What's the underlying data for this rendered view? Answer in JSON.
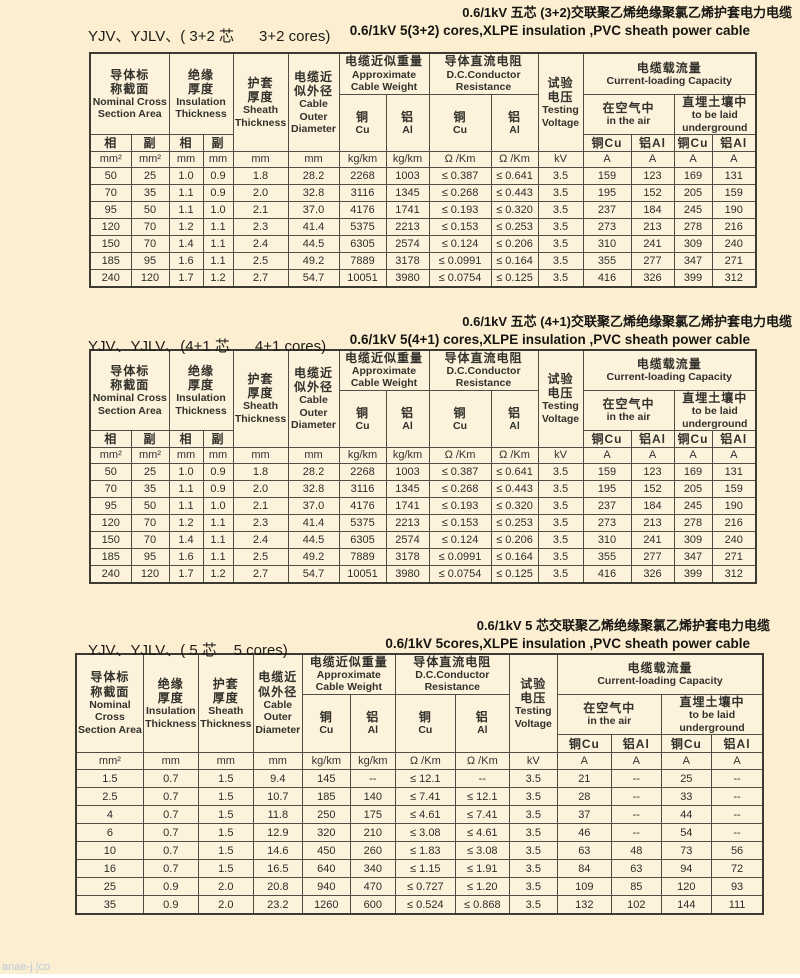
{
  "page": {
    "watermark": "anae-j.|co"
  },
  "colors": {
    "page_bg": "#fcefd1",
    "cell_bg": "#fdf3dc",
    "border": "#514e46",
    "text": "#2e2c27"
  },
  "sections": [
    {
      "model_label": "YJV、YJLV、( 3+2 芯      3+2 cores)",
      "title_cn": "0.6/1kV 五芯 (3+2)交联聚乙烯绝缘聚氯乙烯护套电力电缆",
      "title_en": "0.6/1kV 5(3+2) cores,XLPE insulation ,PVC sheath power cable",
      "header": "split5",
      "rows": [
        [
          "50",
          "25",
          "1.0",
          "0.9",
          "1.8",
          "28.2",
          "2268",
          "1003",
          "≤ 0.387",
          "≤ 0.641",
          "3.5",
          "159",
          "123",
          "169",
          "131"
        ],
        [
          "70",
          "35",
          "1.1",
          "0.9",
          "2.0",
          "32.8",
          "3116",
          "1345",
          "≤ 0.268",
          "≤ 0.443",
          "3.5",
          "195",
          "152",
          "205",
          "159"
        ],
        [
          "95",
          "50",
          "1.1",
          "1.0",
          "2.1",
          "37.0",
          "4176",
          "1741",
          "≤ 0.193",
          "≤ 0.320",
          "3.5",
          "237",
          "184",
          "245",
          "190"
        ],
        [
          "120",
          "70",
          "1.2",
          "1.1",
          "2.3",
          "41.4",
          "5375",
          "2213",
          "≤ 0.153",
          "≤ 0.253",
          "3.5",
          "273",
          "213",
          "278",
          "216"
        ],
        [
          "150",
          "70",
          "1.4",
          "1.1",
          "2.4",
          "44.5",
          "6305",
          "2574",
          "≤ 0.124",
          "≤ 0.206",
          "3.5",
          "310",
          "241",
          "309",
          "240"
        ],
        [
          "185",
          "95",
          "1.6",
          "1.1",
          "2.5",
          "49.2",
          "7889",
          "3178",
          "≤ 0.0991",
          "≤ 0.164",
          "3.5",
          "355",
          "277",
          "347",
          "271"
        ],
        [
          "240",
          "120",
          "1.7",
          "1.2",
          "2.7",
          "54.7",
          "10051",
          "3980",
          "≤ 0.0754",
          "≤ 0.125",
          "3.5",
          "416",
          "326",
          "399",
          "312"
        ]
      ]
    },
    {
      "model_label": "YJV、YJLV、(4+1 芯      4+1 cores)",
      "title_cn": "0.6/1kV 五芯 (4+1)交联聚乙烯绝缘聚氯乙烯护套电力电缆",
      "title_en": "0.6/1kV 5(4+1) cores,XLPE insulation ,PVC sheath power cable",
      "header": "split5",
      "rows": [
        [
          "50",
          "25",
          "1.0",
          "0.9",
          "1.8",
          "28.2",
          "2268",
          "1003",
          "≤ 0.387",
          "≤ 0.641",
          "3.5",
          "159",
          "123",
          "169",
          "131"
        ],
        [
          "70",
          "35",
          "1.1",
          "0.9",
          "2.0",
          "32.8",
          "3116",
          "1345",
          "≤ 0.268",
          "≤ 0.443",
          "3.5",
          "195",
          "152",
          "205",
          "159"
        ],
        [
          "95",
          "50",
          "1.1",
          "1.0",
          "2.1",
          "37.0",
          "4176",
          "1741",
          "≤ 0.193",
          "≤ 0.320",
          "3.5",
          "237",
          "184",
          "245",
          "190"
        ],
        [
          "120",
          "70",
          "1.2",
          "1.1",
          "2.3",
          "41.4",
          "5375",
          "2213",
          "≤ 0.153",
          "≤ 0.253",
          "3.5",
          "273",
          "213",
          "278",
          "216"
        ],
        [
          "150",
          "70",
          "1.4",
          "1.1",
          "2.4",
          "44.5",
          "6305",
          "2574",
          "≤ 0.124",
          "≤ 0.206",
          "3.5",
          "310",
          "241",
          "309",
          "240"
        ],
        [
          "185",
          "95",
          "1.6",
          "1.1",
          "2.5",
          "49.2",
          "7889",
          "3178",
          "≤ 0.0991",
          "≤ 0.164",
          "3.5",
          "355",
          "277",
          "347",
          "271"
        ],
        [
          "240",
          "120",
          "1.7",
          "1.2",
          "2.7",
          "54.7",
          "10051",
          "3980",
          "≤ 0.0754",
          "≤ 0.125",
          "3.5",
          "416",
          "326",
          "399",
          "312"
        ]
      ]
    },
    {
      "model_label": "YJV、YJLV、( 5 芯    5 cores)",
      "title_cn": "0.6/1kV 5 芯交联聚乙烯绝缘聚氯乙烯护套电力电缆",
      "title_en": "0.6/1kV 5cores,XLPE insulation ,PVC sheath power cable",
      "header": "plain5",
      "rows": [
        [
          "1.5",
          "0.7",
          "1.5",
          "9.4",
          "145",
          "--",
          "≤ 12.1",
          "--",
          "3.5",
          "21",
          "--",
          "25",
          "--"
        ],
        [
          "2.5",
          "0.7",
          "1.5",
          "10.7",
          "185",
          "140",
          "≤ 7.41",
          "≤ 12.1",
          "3.5",
          "28",
          "--",
          "33",
          "--"
        ],
        [
          "4",
          "0.7",
          "1.5",
          "11.8",
          "250",
          "175",
          "≤ 4.61",
          "≤ 7.41",
          "3.5",
          "37",
          "--",
          "44",
          "--"
        ],
        [
          "6",
          "0.7",
          "1.5",
          "12.9",
          "320",
          "210",
          "≤ 3.08",
          "≤ 4.61",
          "3.5",
          "46",
          "--",
          "54",
          "--"
        ],
        [
          "10",
          "0.7",
          "1.5",
          "14.6",
          "450",
          "260",
          "≤ 1.83",
          "≤ 3.08",
          "3.5",
          "63",
          "48",
          "73",
          "56"
        ],
        [
          "16",
          "0.7",
          "1.5",
          "16.5",
          "640",
          "340",
          "≤ 1.15",
          "≤ 1.91",
          "3.5",
          "84",
          "63",
          "94",
          "72"
        ],
        [
          "25",
          "0.9",
          "2.0",
          "20.8",
          "940",
          "470",
          "≤ 0.727",
          "≤ 1.20",
          "3.5",
          "109",
          "85",
          "120",
          "93"
        ],
        [
          "35",
          "0.9",
          "2.0",
          "23.2",
          "1260",
          "600",
          "≤ 0.524",
          "≤ 0.868",
          "3.5",
          "132",
          "102",
          "144",
          "111"
        ]
      ]
    }
  ],
  "header_specs": {
    "split5": {
      "widths": [
        41,
        38,
        34,
        30,
        55,
        51,
        47,
        43,
        62,
        47,
        45,
        48,
        43,
        38,
        44
      ],
      "rows": [
        [
          {
            "lines": [
              "导体标",
              "称截面",
              "Nominal Cross",
              "Section Area"
            ],
            "c": 2,
            "r": 2
          },
          {
            "lines": [
              "绝缘",
              "厚度",
              "Insulation",
              "Thickness"
            ],
            "c": 2,
            "r": 2
          },
          {
            "lines": [
              "护套",
              "厚度",
              "Sheath",
              "Thickness"
            ],
            "r": 3
          },
          {
            "lines": [
              "电缆近",
              "似外径",
              "Cable",
              "Outer",
              "Diameter"
            ],
            "r": 3
          },
          {
            "lines": [
              "电缆近似重量",
              "Approximate",
              "Cable Weight"
            ],
            "c": 2
          },
          {
            "lines": [
              "导体直流电阻",
              "D.C.Conductor",
              "Resistance"
            ],
            "c": 2
          },
          {
            "lines": [
              "试验",
              "电压",
              "Testing",
              "Voltage"
            ],
            "r": 3
          },
          {
            "lines": [
              "电缆载流量",
              "Current-loading Capacity"
            ],
            "c": 4
          }
        ],
        [
          {
            "lines": [
              "铜",
              "Cu"
            ],
            "r": 2
          },
          {
            "lines": [
              "铝",
              "Al"
            ],
            "r": 2
          },
          {
            "lines": [
              "铜",
              "Cu"
            ],
            "r": 2
          },
          {
            "lines": [
              "铝",
              "Al"
            ],
            "r": 2
          },
          {
            "lines": [
              "在空气中",
              "in the air"
            ],
            "c": 2
          },
          {
            "lines": [
              "直埋土壤中",
              "to be laid",
              "underground"
            ],
            "c": 2
          }
        ],
        [
          {
            "t": "相"
          },
          {
            "t": "副"
          },
          {
            "t": "相"
          },
          {
            "t": "副"
          },
          {
            "t": "铜Cu"
          },
          {
            "t": "铝Al"
          },
          {
            "t": "铜Cu"
          },
          {
            "t": "铝Al"
          }
        ],
        [
          {
            "t": "mm²"
          },
          {
            "t": "mm²"
          },
          {
            "t": "mm"
          },
          {
            "t": "mm"
          },
          {
            "t": "mm"
          },
          {
            "t": "mm"
          },
          {
            "t": "kg/km"
          },
          {
            "t": "kg/km"
          },
          {
            "t": "Ω /Km"
          },
          {
            "t": "Ω /Km"
          },
          {
            "t": "kV"
          },
          {
            "t": "A"
          },
          {
            "t": "A"
          },
          {
            "t": "A"
          },
          {
            "t": "A"
          }
        ]
      ]
    },
    "plain5": {
      "widths": [
        60,
        55,
        55,
        49,
        48,
        45,
        60,
        54,
        48,
        54,
        50,
        50,
        52
      ],
      "rows": [
        [
          {
            "lines": [
              "导体标",
              "称截面",
              "Nominal",
              "Cross",
              "Section Area"
            ],
            "r": 3
          },
          {
            "lines": [
              "绝缘",
              "厚度",
              "Insulation",
              "Thickness"
            ],
            "r": 3
          },
          {
            "lines": [
              "护套",
              "厚度",
              "Sheath",
              "Thickness"
            ],
            "r": 3
          },
          {
            "lines": [
              "电缆近",
              "似外径",
              "Cable",
              "Outer",
              "Diameter"
            ],
            "r": 3
          },
          {
            "lines": [
              "电缆近似重量",
              "Approximate",
              "Cable Weight"
            ],
            "c": 2
          },
          {
            "lines": [
              "导体直流电阻",
              "D.C.Conductor",
              "Resistance"
            ],
            "c": 2
          },
          {
            "lines": [
              "试验",
              "电压",
              "Testing",
              "Voltage"
            ],
            "r": 3
          },
          {
            "lines": [
              "电缆载流量",
              "Current-loading Capacity"
            ],
            "c": 4
          }
        ],
        [
          {
            "lines": [
              "铜",
              "Cu"
            ],
            "r": 2
          },
          {
            "lines": [
              "铝",
              "Al"
            ],
            "r": 2
          },
          {
            "lines": [
              "铜",
              "Cu"
            ],
            "r": 2
          },
          {
            "lines": [
              "铝",
              "Al"
            ],
            "r": 2
          },
          {
            "lines": [
              "在空气中",
              "in the air"
            ],
            "c": 2
          },
          {
            "lines": [
              "直埋土壤中",
              "to be laid",
              "underground"
            ],
            "c": 2
          }
        ],
        [
          {
            "t": "铜Cu"
          },
          {
            "t": "铝Al"
          },
          {
            "t": "铜Cu"
          },
          {
            "t": "铝Al"
          }
        ],
        [
          {
            "t": "mm²"
          },
          {
            "t": "mm"
          },
          {
            "t": "mm"
          },
          {
            "t": "mm"
          },
          {
            "t": "kg/km"
          },
          {
            "t": "kg/km"
          },
          {
            "t": "Ω /Km"
          },
          {
            "t": "Ω /Km"
          },
          {
            "t": "kV"
          },
          {
            "t": "A"
          },
          {
            "t": "A"
          },
          {
            "t": "A"
          },
          {
            "t": "A"
          }
        ]
      ]
    }
  }
}
